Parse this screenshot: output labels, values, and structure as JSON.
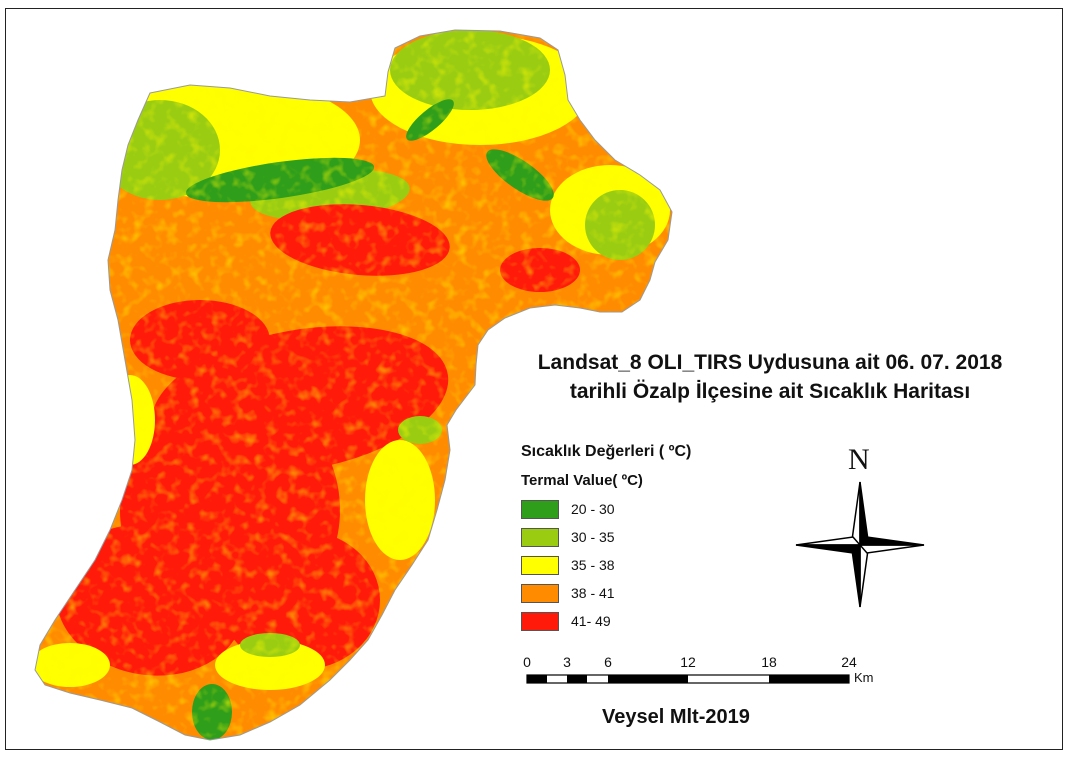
{
  "map": {
    "title_line1": "Landsat_8 OLI_TIRS Uydusuna ait 06. 07. 2018",
    "title_line2": "tarihli Özalp İlçesine ait Sıcaklık Haritası",
    "author": "Veysel Mlt-2019"
  },
  "legend": {
    "heading": "Sıcaklık Değerleri ( ºC)",
    "subheading": "Termal Value( ºC)",
    "classes": [
      {
        "label": "20 - 30",
        "color": "#2f9e1a"
      },
      {
        "label": "30 - 35",
        "color": "#9acd12"
      },
      {
        "label": "35 - 38",
        "color": "#ffff00"
      },
      {
        "label": "38 - 41",
        "color": "#ff8c00"
      },
      {
        "label": "41- 49",
        "color": "#ff1a0a"
      }
    ]
  },
  "north_arrow": {
    "label": "N"
  },
  "scale_bar": {
    "ticks": [
      "0",
      "3",
      "6",
      "12",
      "18",
      "24"
    ],
    "unit": "Km"
  }
}
